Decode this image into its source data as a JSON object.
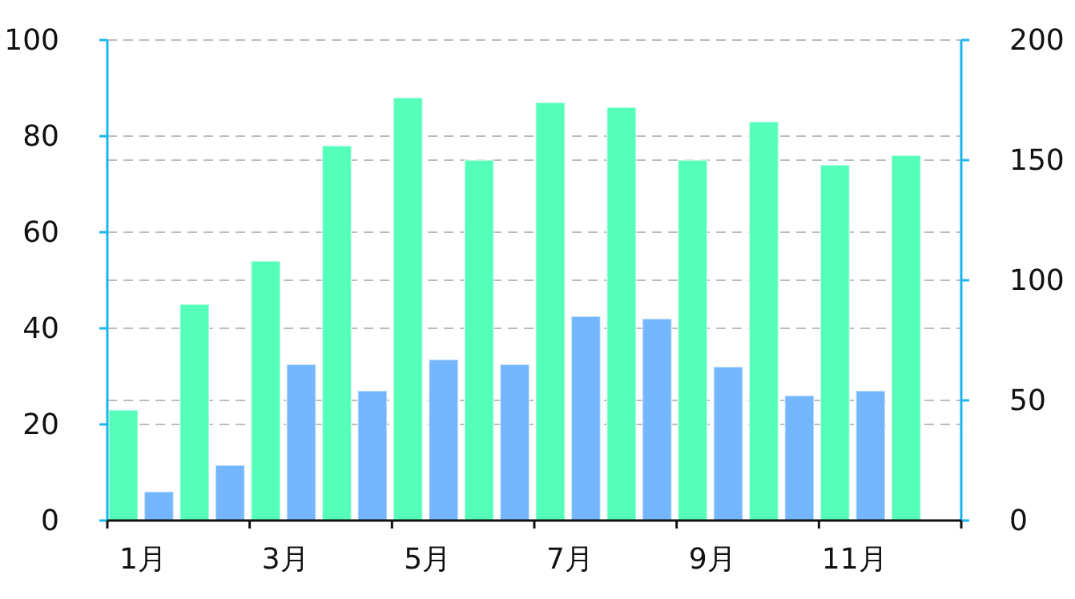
{
  "chart_data": {
    "type": "bar",
    "categories": [
      "1月",
      null,
      "3月",
      null,
      "5月",
      null,
      "7月",
      null,
      "9月",
      null,
      "11月",
      null
    ],
    "series": [
      {
        "color": "#55feb9",
        "values": [
          23,
          45,
          54,
          78,
          88,
          75,
          87,
          86,
          75,
          83,
          74,
          76
        ]
      },
      {
        "color": "#74b6fc",
        "axis": "y2",
        "values": [
          12,
          23,
          65,
          54,
          67,
          65,
          85,
          84,
          64,
          52,
          54,
          null
        ]
      }
    ],
    "ylim": [
      0,
      100
    ],
    "yticks": [
      0,
      20,
      40,
      60,
      80,
      100
    ],
    "y2lim": [
      0,
      200
    ],
    "y2ticks": [
      0,
      50,
      100,
      150,
      200
    ],
    "grid": "y"
  }
}
